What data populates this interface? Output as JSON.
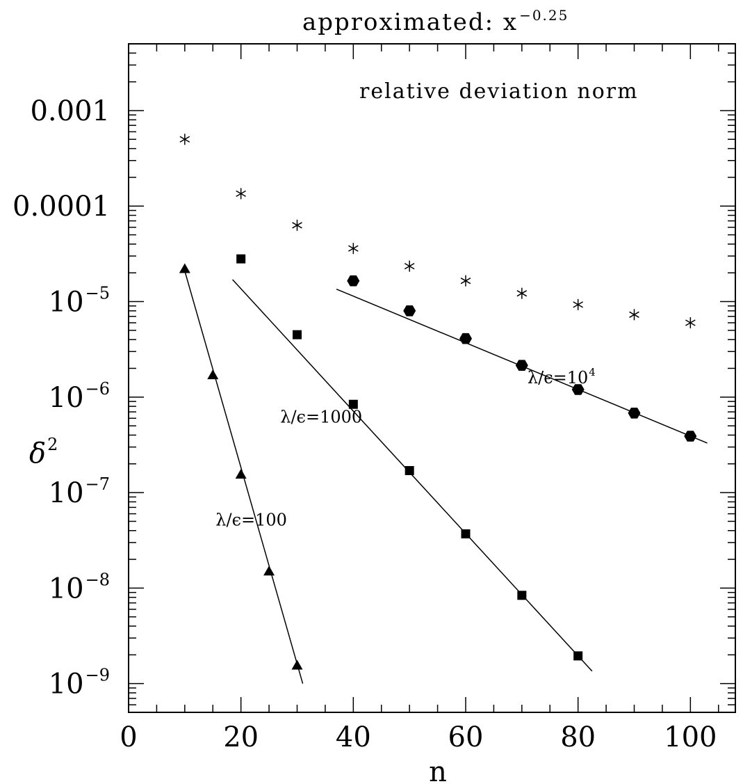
{
  "chart_data": {
    "type": "scatter",
    "title": "approximated: x",
    "title_exponent": "−0.25",
    "annotation": "relative deviation norm",
    "xlabel": "n",
    "ylabel_base": "δ",
    "ylabel_exponent": "2",
    "xlim": [
      0,
      108
    ],
    "ylim": [
      5e-10,
      0.005
    ],
    "yscale": "log",
    "grid": false,
    "legend": "none",
    "x_ticks": [
      "0",
      "20",
      "40",
      "60",
      "80",
      "100"
    ],
    "y_tick_labels": [
      {
        "value": 0.001,
        "base": "0.001",
        "exp": ""
      },
      {
        "value": 0.0001,
        "base": "0.0001",
        "exp": ""
      },
      {
        "value": 1e-05,
        "base": "10",
        "exp": "−5"
      },
      {
        "value": 1e-06,
        "base": "10",
        "exp": "−6"
      },
      {
        "value": 1e-07,
        "base": "10",
        "exp": "−7"
      },
      {
        "value": 1e-08,
        "base": "10",
        "exp": "−8"
      },
      {
        "value": 1e-09,
        "base": "10",
        "exp": "−9"
      }
    ],
    "series": [
      {
        "label_base": "λ/ϵ=100",
        "label_exp": "",
        "marker": "triangle",
        "label_pos": [
          15.5,
          4.5e-08
        ],
        "x": [
          10,
          15,
          20,
          25,
          30
        ],
        "y": [
          2.2e-05,
          1.7e-06,
          1.55e-07,
          1.5e-08,
          1.55e-09
        ],
        "fit": {
          "x": [
            9.8,
            31
          ],
          "y": [
            2.3e-05,
            1e-09
          ]
        }
      },
      {
        "label_base": "λ/ϵ=1000",
        "label_exp": "",
        "marker": "square",
        "label_pos": [
          27,
          5.4e-07
        ],
        "x": [
          20,
          30,
          40,
          50,
          60,
          70,
          80
        ],
        "y": [
          2.8e-05,
          4.5e-06,
          8.4e-07,
          1.7e-07,
          3.7e-08,
          8.4e-09,
          1.95e-09
        ],
        "fit": {
          "x": [
            18.5,
            82.5
          ],
          "y": [
            1.7e-05,
            1.35e-09
          ]
        }
      },
      {
        "label_base": "λ/ϵ=10",
        "label_exp": "4",
        "marker": "hexagon",
        "label_pos": [
          71,
          1.4e-06
        ],
        "x": [
          40,
          50,
          60,
          70,
          80,
          90,
          100
        ],
        "y": [
          1.65e-05,
          8e-06,
          4.1e-06,
          2.15e-06,
          1.2e-06,
          6.8e-07,
          3.9e-07
        ],
        "fit": {
          "x": [
            37,
            103
          ],
          "y": [
            1.35e-05,
            3.3e-07
          ]
        }
      },
      {
        "label_base": "",
        "label_exp": "",
        "marker": "asterisk",
        "x": [
          10,
          20,
          30,
          40,
          50,
          60,
          70,
          80,
          90,
          100
        ],
        "y": [
          0.0005,
          0.000135,
          6.3e-05,
          3.6e-05,
          2.35e-05,
          1.65e-05,
          1.22e-05,
          9.3e-06,
          7.3e-06,
          6e-06
        ]
      }
    ]
  }
}
